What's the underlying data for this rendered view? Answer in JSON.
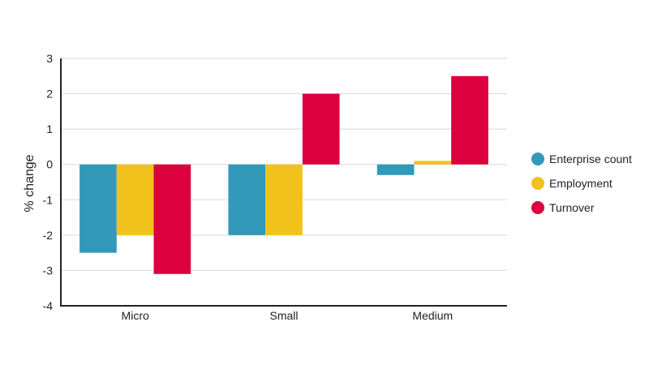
{
  "chart_data": {
    "type": "bar",
    "title": "",
    "xlabel": "",
    "ylabel": "% change",
    "ylim": [
      -4,
      3
    ],
    "yticks": [
      3,
      2,
      1,
      0,
      -1,
      -2,
      -3,
      -4
    ],
    "grid": true,
    "legend_position": "right",
    "categories": [
      "Micro",
      "Small",
      "Medium"
    ],
    "series": [
      {
        "name": "Enterprise count",
        "color": "#3399bb",
        "values": [
          -2.5,
          -2.0,
          -0.3
        ]
      },
      {
        "name": "Employment",
        "color": "#f1c21b",
        "values": [
          -2.0,
          -2.0,
          0.1
        ]
      },
      {
        "name": "Turnover",
        "color": "#dc003e",
        "values": [
          -3.1,
          2.0,
          2.5
        ]
      }
    ]
  }
}
